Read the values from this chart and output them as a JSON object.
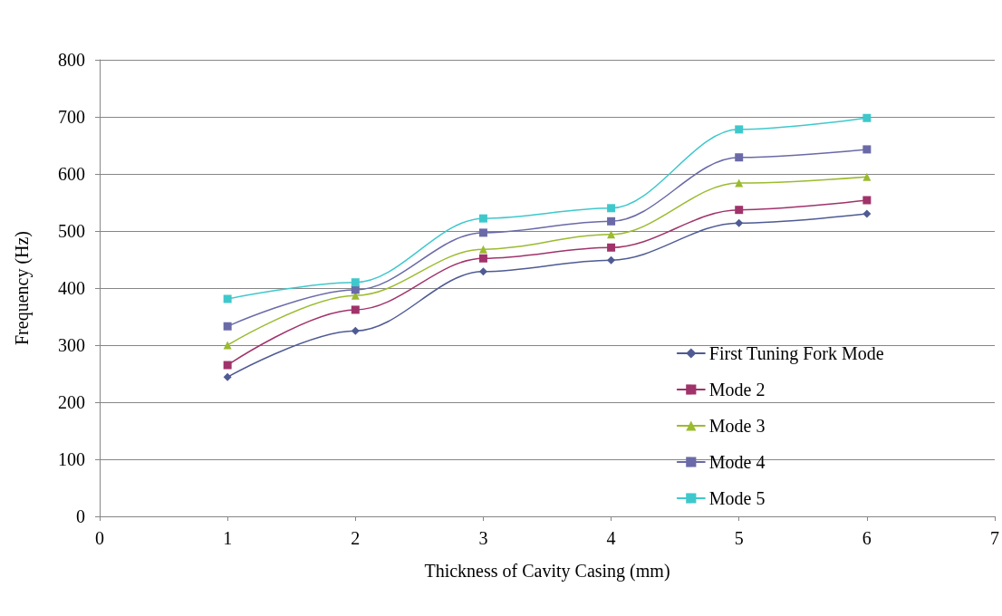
{
  "chart_data": {
    "type": "line",
    "xlabel": "Thickness of Cavity Casing (mm)",
    "ylabel": "Frequency (Hz)",
    "x": [
      1,
      2,
      3,
      4,
      5,
      6
    ],
    "xlim": [
      0,
      7
    ],
    "xticks": [
      0,
      1,
      2,
      3,
      4,
      5,
      6,
      7
    ],
    "ylim": [
      0,
      800
    ],
    "yticks": [
      0,
      100,
      200,
      300,
      400,
      500,
      600,
      700,
      800
    ],
    "grid": "y",
    "legend": "bottom right",
    "line_style": "solid",
    "series": [
      {
        "name": "First Tuning Fork Mode",
        "color": "#4f5b93",
        "marker": "diamond",
        "values": [
          244,
          325,
          429,
          449,
          514,
          530
        ]
      },
      {
        "name": "Mode 2",
        "color": "#a0336a",
        "marker": "square",
        "values": [
          265,
          362,
          452,
          471,
          537,
          554
        ]
      },
      {
        "name": "Mode 3",
        "color": "#9bbb2f",
        "marker": "triangle",
        "values": [
          300,
          387,
          468,
          494,
          584,
          595
        ]
      },
      {
        "name": "Mode 4",
        "color": "#6a6aa8",
        "marker": "square",
        "values": [
          333,
          397,
          497,
          517,
          629,
          643
        ]
      },
      {
        "name": "Mode 5",
        "color": "#3fc8cc",
        "marker": "square",
        "values": [
          381,
          410,
          522,
          540,
          678,
          698
        ]
      }
    ]
  }
}
